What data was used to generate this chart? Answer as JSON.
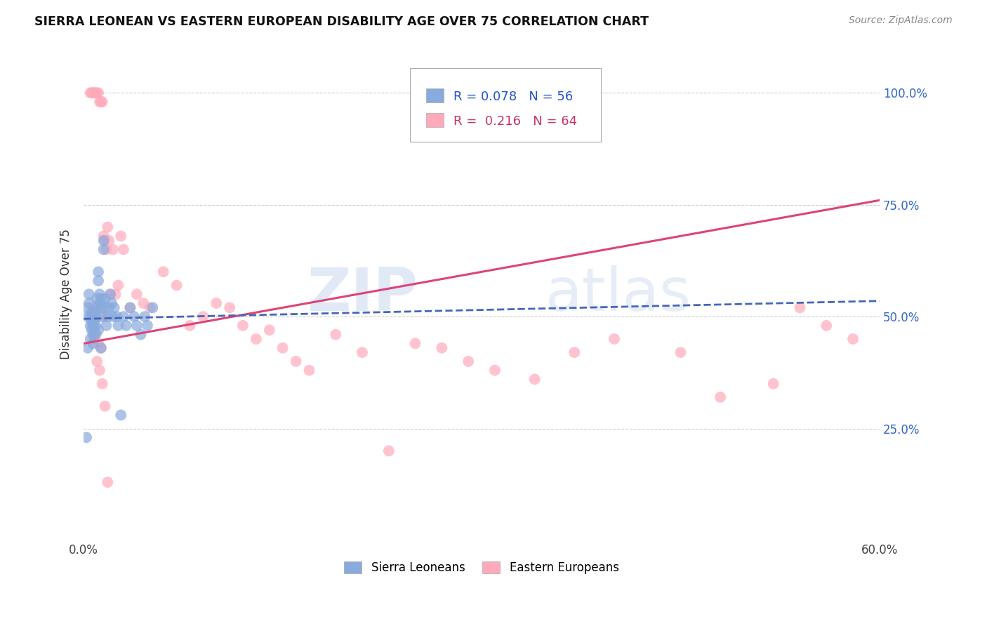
{
  "title": "SIERRA LEONEAN VS EASTERN EUROPEAN DISABILITY AGE OVER 75 CORRELATION CHART",
  "source": "Source: ZipAtlas.com",
  "ylabel": "Disability Age Over 75",
  "legend_blue_R": "0.078",
  "legend_blue_N": "56",
  "legend_pink_R": "0.216",
  "legend_pink_N": "64",
  "legend_label_blue": "Sierra Leoneans",
  "legend_label_pink": "Eastern Europeans",
  "blue_color": "#88aadd",
  "pink_color": "#ffaabb",
  "blue_line_color": "#4466bb",
  "pink_line_color": "#dd4477",
  "watermark_zip": "ZIP",
  "watermark_atlas": "atlas",
  "xlim": [
    0.0,
    0.6
  ],
  "ylim": [
    0.0,
    1.1
  ],
  "blue_x": [
    0.002,
    0.003,
    0.003,
    0.004,
    0.004,
    0.005,
    0.005,
    0.006,
    0.006,
    0.006,
    0.007,
    0.007,
    0.007,
    0.008,
    0.008,
    0.008,
    0.009,
    0.009,
    0.01,
    0.01,
    0.011,
    0.011,
    0.012,
    0.012,
    0.013,
    0.013,
    0.014,
    0.015,
    0.015,
    0.016,
    0.016,
    0.017,
    0.018,
    0.019,
    0.02,
    0.021,
    0.022,
    0.023,
    0.025,
    0.026,
    0.028,
    0.03,
    0.032,
    0.035,
    0.038,
    0.04,
    0.043,
    0.046,
    0.048,
    0.052,
    0.003,
    0.005,
    0.007,
    0.009,
    0.011,
    0.013
  ],
  "blue_y": [
    0.23,
    0.5,
    0.52,
    0.53,
    0.55,
    0.48,
    0.5,
    0.47,
    0.49,
    0.51,
    0.46,
    0.48,
    0.5,
    0.47,
    0.49,
    0.51,
    0.48,
    0.5,
    0.52,
    0.54,
    0.58,
    0.6,
    0.53,
    0.55,
    0.52,
    0.54,
    0.5,
    0.65,
    0.67,
    0.52,
    0.54,
    0.48,
    0.5,
    0.52,
    0.55,
    0.53,
    0.5,
    0.52,
    0.5,
    0.48,
    0.28,
    0.5,
    0.48,
    0.52,
    0.5,
    0.48,
    0.46,
    0.5,
    0.48,
    0.52,
    0.43,
    0.45,
    0.44,
    0.46,
    0.47,
    0.43
  ],
  "pink_x": [
    0.005,
    0.006,
    0.007,
    0.008,
    0.009,
    0.01,
    0.011,
    0.012,
    0.013,
    0.014,
    0.015,
    0.016,
    0.017,
    0.018,
    0.019,
    0.02,
    0.022,
    0.024,
    0.026,
    0.028,
    0.03,
    0.035,
    0.04,
    0.045,
    0.05,
    0.06,
    0.07,
    0.08,
    0.09,
    0.1,
    0.11,
    0.12,
    0.13,
    0.14,
    0.15,
    0.16,
    0.17,
    0.19,
    0.21,
    0.23,
    0.25,
    0.27,
    0.29,
    0.31,
    0.34,
    0.37,
    0.4,
    0.45,
    0.48,
    0.52,
    0.54,
    0.56,
    0.58,
    0.008,
    0.01,
    0.012,
    0.014,
    0.016,
    0.018,
    0.007,
    0.009,
    0.013,
    0.011,
    0.015
  ],
  "pink_y": [
    1.0,
    1.0,
    1.0,
    1.0,
    1.0,
    1.0,
    1.0,
    0.98,
    0.98,
    0.98,
    0.68,
    0.67,
    0.65,
    0.7,
    0.67,
    0.55,
    0.65,
    0.55,
    0.57,
    0.68,
    0.65,
    0.52,
    0.55,
    0.53,
    0.52,
    0.6,
    0.57,
    0.48,
    0.5,
    0.53,
    0.52,
    0.48,
    0.45,
    0.47,
    0.43,
    0.4,
    0.38,
    0.46,
    0.42,
    0.2,
    0.44,
    0.43,
    0.4,
    0.38,
    0.36,
    0.42,
    0.45,
    0.42,
    0.32,
    0.35,
    0.52,
    0.48,
    0.45,
    0.45,
    0.4,
    0.38,
    0.35,
    0.3,
    0.13,
    0.52,
    0.46,
    0.43,
    0.44,
    0.5
  ]
}
